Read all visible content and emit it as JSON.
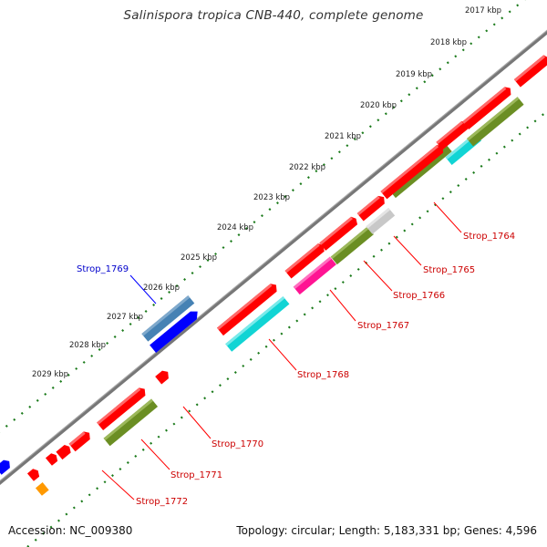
{
  "title": "Salinispora tropica CNB-440, complete genome",
  "footer": {
    "accession": "Accession: NC_009380",
    "stats": "Topology: circular; Length: 5,183,331 bp; Genes: 4,596"
  },
  "ruler_ticks": [
    "2017 kbp",
    "2018 kbp",
    "2019 kbp",
    "2020 kbp",
    "2021 kbp",
    "2022 kbp",
    "2023 kbp",
    "2024 kbp",
    "2025 kbp",
    "2026 kbp",
    "2027 kbp",
    "2028 kbp",
    "2029 kbp"
  ],
  "gene_labels": [
    "Strop_1764",
    "Strop_1765",
    "Strop_1766",
    "Strop_1767",
    "Strop_1768",
    "Strop_1769",
    "Strop_1770",
    "Strop_1771",
    "Strop_1772"
  ],
  "colors": {
    "backbone": "#777777",
    "dots": "#1a7a1a",
    "forward_cds": "#ff0000",
    "label_forward": "#cc0000",
    "label_reverse": "#0000cc",
    "cyan": "#11d4d4",
    "olive": "#6b8e23",
    "magenta": "#ff1493",
    "blue": "#0000ff",
    "steelblue": "#4682b4",
    "gray": "#c8c8c8",
    "orange": "#ff9900"
  }
}
